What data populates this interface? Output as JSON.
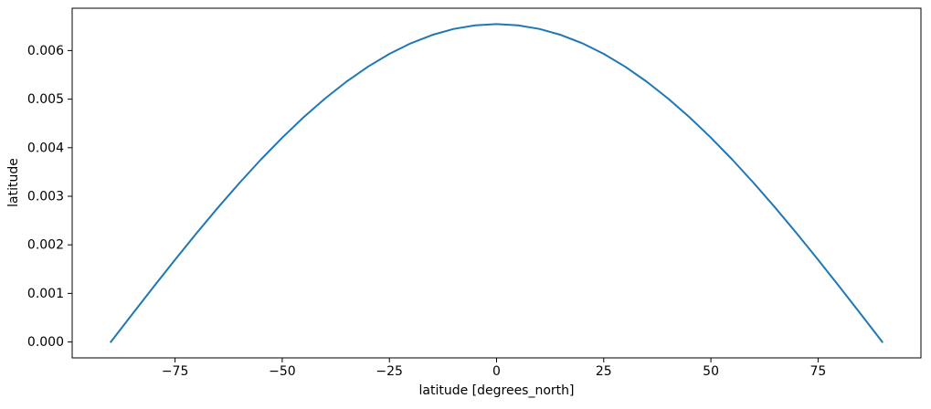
{
  "chart_data": {
    "type": "line",
    "title": "",
    "xlabel": "latitude [degrees_north]",
    "ylabel": "latitude",
    "grid": false,
    "legend": null,
    "background_color": "#ffffff",
    "spine_color": "#000000",
    "xlim": [
      -99,
      99
    ],
    "ylim": [
      -0.0003272,
      0.0068722
    ],
    "xticks": [
      -75,
      -50,
      -25,
      0,
      25,
      50,
      75
    ],
    "xtick_labels": [
      "−75",
      "−50",
      "−25",
      "0",
      "25",
      "50",
      "75"
    ],
    "yticks": [
      0.0,
      0.001,
      0.002,
      0.003,
      0.004,
      0.005,
      0.006
    ],
    "ytick_labels": [
      "0.000",
      "0.001",
      "0.002",
      "0.003",
      "0.004",
      "0.005",
      "0.006"
    ],
    "series": [
      {
        "name": "latitude",
        "color": "#1f77b4",
        "line_width": 2,
        "x": [
          -90,
          -85,
          -80,
          -75,
          -70,
          -65,
          -60,
          -55,
          -50,
          -45,
          -40,
          -35,
          -30,
          -25,
          -20,
          -15,
          -10,
          -5,
          0,
          5,
          10,
          15,
          20,
          25,
          30,
          35,
          40,
          45,
          50,
          55,
          60,
          65,
          70,
          75,
          80,
          85,
          90
        ],
        "y": [
          0.0,
          0.0005704,
          0.0011365,
          0.001694,
          0.0022385,
          0.002766,
          0.0032725,
          0.0037541,
          0.004207,
          0.004628,
          0.0050138,
          0.0053613,
          0.0056681,
          0.0059318,
          0.0061503,
          0.006322,
          0.0064456,
          0.0065201,
          0.006545,
          0.0065201,
          0.0064456,
          0.006322,
          0.0061503,
          0.0059318,
          0.0056681,
          0.0053613,
          0.0050138,
          0.004628,
          0.004207,
          0.0037541,
          0.0032725,
          0.002766,
          0.0022385,
          0.001694,
          0.0011365,
          0.0005704,
          0.0
        ]
      }
    ],
    "peak_value": 0.006545,
    "peak_x": 0
  }
}
